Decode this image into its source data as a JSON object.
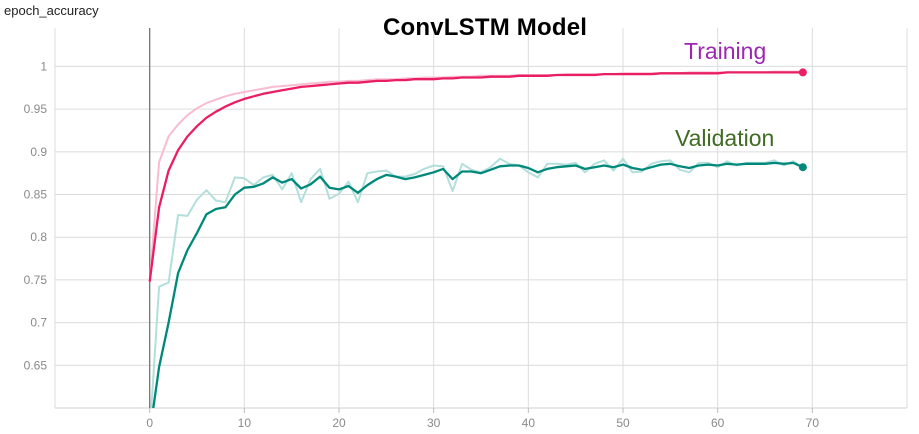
{
  "metric_label": "epoch_accuracy",
  "chart_data": {
    "type": "line",
    "title": "ConvLSTM Model",
    "xlabel": "",
    "ylabel": "",
    "xlim": [
      -10,
      80
    ],
    "ylim": [
      0.6,
      1.045
    ],
    "grid": true,
    "legend": "inline annotations near line ends",
    "x_ticks": [
      0,
      10,
      20,
      30,
      40,
      50,
      60,
      70
    ],
    "y_ticks": [
      0.65,
      0.7,
      0.75,
      0.8,
      0.85,
      0.9,
      0.95,
      1
    ],
    "x": [
      0,
      1,
      2,
      3,
      4,
      5,
      6,
      7,
      8,
      9,
      10,
      11,
      12,
      13,
      14,
      15,
      16,
      17,
      18,
      19,
      20,
      21,
      22,
      23,
      24,
      25,
      26,
      27,
      28,
      29,
      30,
      31,
      32,
      33,
      34,
      35,
      36,
      37,
      38,
      39,
      40,
      41,
      42,
      43,
      44,
      45,
      46,
      47,
      48,
      49,
      50,
      51,
      52,
      53,
      54,
      55,
      56,
      57,
      58,
      59,
      60,
      61,
      62,
      63,
      64,
      65,
      66,
      67,
      68,
      69
    ],
    "series": [
      {
        "name": "Training",
        "color": "#e91e63",
        "raw_color": "#f8bbd0",
        "values_smoothed": [
          0.748,
          0.835,
          0.878,
          0.902,
          0.918,
          0.93,
          0.94,
          0.947,
          0.953,
          0.958,
          0.962,
          0.965,
          0.968,
          0.97,
          0.972,
          0.974,
          0.976,
          0.977,
          0.978,
          0.979,
          0.98,
          0.981,
          0.981,
          0.982,
          0.983,
          0.983,
          0.984,
          0.984,
          0.985,
          0.985,
          0.985,
          0.986,
          0.986,
          0.987,
          0.987,
          0.987,
          0.988,
          0.988,
          0.988,
          0.989,
          0.989,
          0.989,
          0.989,
          0.99,
          0.99,
          0.99,
          0.99,
          0.99,
          0.991,
          0.991,
          0.991,
          0.991,
          0.991,
          0.991,
          0.992,
          0.992,
          0.992,
          0.992,
          0.992,
          0.992,
          0.992,
          0.993,
          0.993,
          0.993,
          0.993,
          0.993,
          0.993,
          0.993,
          0.993,
          0.993
        ],
        "values_raw": [
          0.748,
          0.888,
          0.918,
          0.932,
          0.943,
          0.951,
          0.957,
          0.961,
          0.965,
          0.968,
          0.97,
          0.972,
          0.974,
          0.976,
          0.977,
          0.978,
          0.979,
          0.98,
          0.981,
          0.982,
          0.982,
          0.983,
          0.983,
          0.984,
          0.985,
          0.985,
          0.985,
          0.986,
          0.986,
          0.987,
          0.987,
          0.987,
          0.988,
          0.988,
          0.988,
          0.989,
          0.989,
          0.989,
          0.989,
          0.99,
          0.99,
          0.99,
          0.99,
          0.99,
          0.991,
          0.991,
          0.991,
          0.991,
          0.991,
          0.991,
          0.992,
          0.992,
          0.992,
          0.992,
          0.992,
          0.992,
          0.992,
          0.993,
          0.993,
          0.993,
          0.993,
          0.993,
          0.993,
          0.993,
          0.993,
          0.993,
          0.994,
          0.994,
          0.994,
          0.994
        ]
      },
      {
        "name": "Validation",
        "color": "#00897b",
        "raw_color": "#b2dfdb",
        "values_smoothed": [
          0.57,
          0.648,
          0.7,
          0.758,
          0.785,
          0.805,
          0.827,
          0.833,
          0.835,
          0.85,
          0.858,
          0.859,
          0.863,
          0.87,
          0.864,
          0.868,
          0.857,
          0.862,
          0.871,
          0.858,
          0.856,
          0.86,
          0.852,
          0.861,
          0.868,
          0.873,
          0.871,
          0.868,
          0.87,
          0.873,
          0.876,
          0.88,
          0.868,
          0.877,
          0.877,
          0.875,
          0.879,
          0.883,
          0.884,
          0.884,
          0.881,
          0.876,
          0.88,
          0.882,
          0.883,
          0.884,
          0.88,
          0.882,
          0.884,
          0.882,
          0.885,
          0.881,
          0.879,
          0.882,
          0.885,
          0.886,
          0.883,
          0.881,
          0.884,
          0.885,
          0.884,
          0.886,
          0.885,
          0.886,
          0.886,
          0.886,
          0.887,
          0.886,
          0.887,
          0.882
        ],
        "values_raw": [
          0.57,
          0.742,
          0.747,
          0.826,
          0.825,
          0.844,
          0.855,
          0.843,
          0.841,
          0.87,
          0.869,
          0.861,
          0.87,
          0.873,
          0.856,
          0.875,
          0.841,
          0.868,
          0.88,
          0.845,
          0.851,
          0.865,
          0.841,
          0.875,
          0.877,
          0.878,
          0.871,
          0.871,
          0.874,
          0.88,
          0.884,
          0.883,
          0.854,
          0.886,
          0.879,
          0.876,
          0.882,
          0.892,
          0.886,
          0.884,
          0.876,
          0.87,
          0.886,
          0.886,
          0.885,
          0.887,
          0.876,
          0.886,
          0.89,
          0.878,
          0.892,
          0.876,
          0.877,
          0.886,
          0.889,
          0.89,
          0.879,
          0.876,
          0.887,
          0.887,
          0.882,
          0.889,
          0.884,
          0.887,
          0.887,
          0.887,
          0.89,
          0.884,
          0.889,
          0.881
        ]
      }
    ],
    "annotations": [
      "Training",
      "Validation"
    ]
  }
}
